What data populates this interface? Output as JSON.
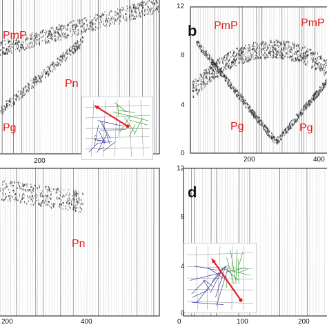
{
  "colors": {
    "phase": "#e41a1c",
    "trace": "#222222",
    "inset_red": "#e41a1c",
    "inset_green": "#3a9a3a",
    "inset_blue": "#3b3b9a",
    "inset_grid": "#999999"
  },
  "panels": {
    "a": {
      "phases": {
        "pmp": "PmP",
        "pn": "Pn",
        "pg": "Pg"
      },
      "x_ticks": {
        "t200": "200"
      }
    },
    "b": {
      "label": "b",
      "phases": {
        "pmp": "PmP",
        "pmp2": "PmP",
        "pg": "Pg",
        "pg2": "Pg"
      },
      "x_ticks": {
        "t200": "200",
        "t400": "400"
      },
      "y_ticks": {
        "t12": "12",
        "t8": "8",
        "t4": "4",
        "t0": "0"
      }
    },
    "c": {
      "phases": {
        "pn": "Pn"
      },
      "x_ticks": {
        "t200": "200",
        "t400": "400"
      }
    },
    "d": {
      "label": "d",
      "x_ticks": {
        "t0": "0",
        "t100": "100",
        "t200": "200"
      },
      "y_ticks": {
        "t12": "12",
        "t8": "8",
        "t4": "4",
        "t0": "0"
      }
    }
  }
}
